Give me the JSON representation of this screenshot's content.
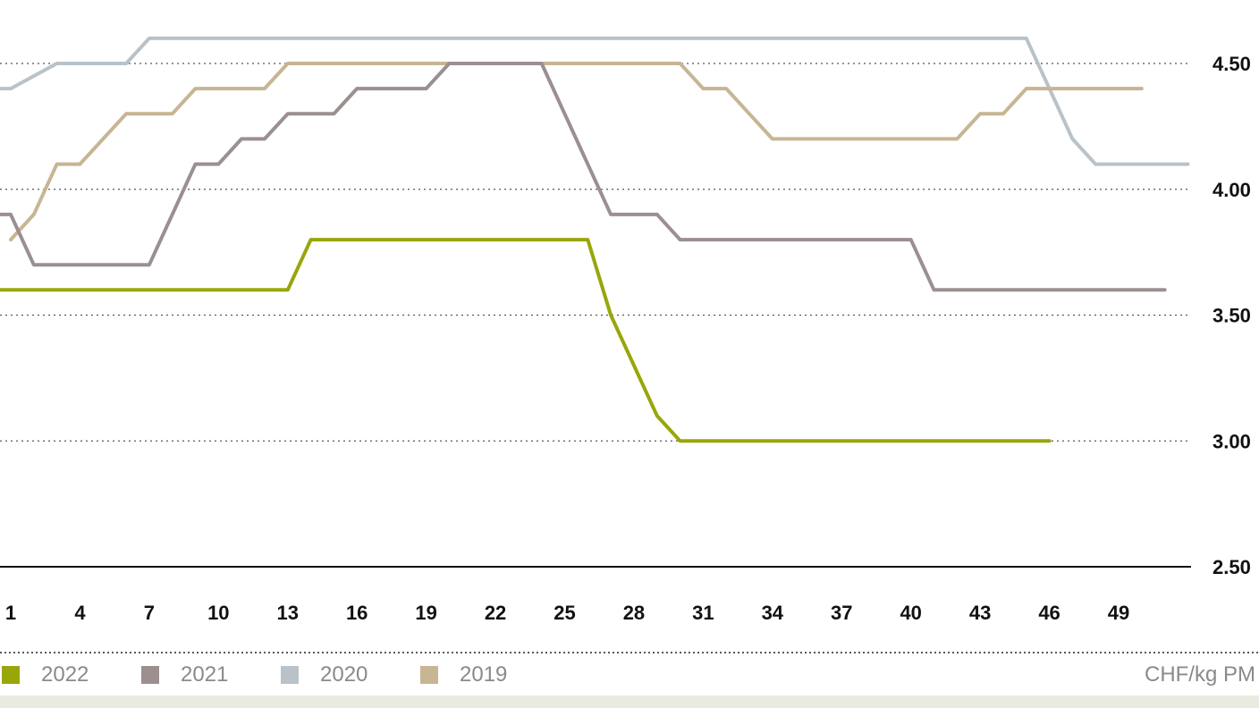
{
  "chart_data": {
    "type": "line",
    "ylabel": "",
    "xlabel": "",
    "unit_label": "CHF/kg PM",
    "ylim": [
      2.5,
      4.7
    ],
    "xlim": [
      0,
      52
    ],
    "y_ticks": [
      "2.50",
      "3.00",
      "3.50",
      "4.00",
      "4.50"
    ],
    "x_ticks": [
      "1",
      "4",
      "7",
      "10",
      "13",
      "16",
      "19",
      "22",
      "25",
      "28",
      "31",
      "34",
      "37",
      "40",
      "43",
      "46",
      "49"
    ],
    "grid": "horizontal dotted",
    "legend_position": "bottom",
    "series": [
      {
        "name": "2020",
        "color": "#b9c2c9",
        "points": [
          [
            0,
            4.4
          ],
          [
            1,
            4.4
          ],
          [
            3,
            4.5
          ],
          [
            6,
            4.5
          ],
          [
            7,
            4.6
          ],
          [
            45,
            4.6
          ],
          [
            46,
            4.4
          ],
          [
            47,
            4.2
          ],
          [
            48,
            4.1
          ],
          [
            52,
            4.1
          ]
        ]
      },
      {
        "name": "2019",
        "color": "#c7b594",
        "points": [
          [
            1,
            3.8
          ],
          [
            2,
            3.9
          ],
          [
            3,
            4.1
          ],
          [
            4,
            4.1
          ],
          [
            5,
            4.2
          ],
          [
            6,
            4.3
          ],
          [
            8,
            4.3
          ],
          [
            9,
            4.4
          ],
          [
            12,
            4.4
          ],
          [
            13,
            4.5
          ],
          [
            30,
            4.5
          ],
          [
            31,
            4.4
          ],
          [
            32,
            4.4
          ],
          [
            33,
            4.3
          ],
          [
            34,
            4.2
          ],
          [
            42,
            4.2
          ],
          [
            43,
            4.3
          ],
          [
            44,
            4.3
          ],
          [
            45,
            4.4
          ],
          [
            50,
            4.4
          ]
        ]
      },
      {
        "name": "2021",
        "color": "#9c8f8f",
        "points": [
          [
            0,
            3.9
          ],
          [
            1,
            3.9
          ],
          [
            2,
            3.7
          ],
          [
            7,
            3.7
          ],
          [
            8,
            3.9
          ],
          [
            9,
            4.1
          ],
          [
            10,
            4.1
          ],
          [
            11,
            4.2
          ],
          [
            12,
            4.2
          ],
          [
            13,
            4.3
          ],
          [
            15,
            4.3
          ],
          [
            16,
            4.4
          ],
          [
            19,
            4.4
          ],
          [
            20,
            4.5
          ],
          [
            24,
            4.5
          ],
          [
            25,
            4.3
          ],
          [
            26,
            4.1
          ],
          [
            27,
            3.9
          ],
          [
            29,
            3.9
          ],
          [
            30,
            3.8
          ],
          [
            40,
            3.8
          ],
          [
            41,
            3.6
          ],
          [
            51,
            3.6
          ]
        ]
      },
      {
        "name": "2022",
        "color": "#99a60a",
        "points": [
          [
            0,
            3.6
          ],
          [
            13,
            3.6
          ],
          [
            14,
            3.8
          ],
          [
            26,
            3.8
          ],
          [
            27,
            3.5
          ],
          [
            29,
            3.1
          ],
          [
            30,
            3.0
          ],
          [
            46,
            3.0
          ]
        ]
      }
    ]
  },
  "legend": [
    {
      "label": "2022",
      "color": "#99a60a"
    },
    {
      "label": "2021",
      "color": "#9c8f8f"
    },
    {
      "label": "2020",
      "color": "#b9c2c9"
    },
    {
      "label": "2019",
      "color": "#c7b594"
    }
  ],
  "unit_label": "CHF/kg PM"
}
